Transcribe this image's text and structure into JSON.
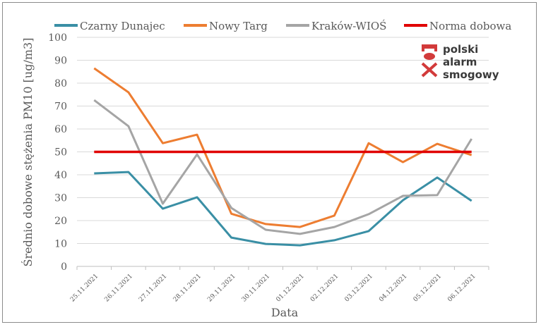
{
  "chart_data": {
    "type": "line",
    "title": "",
    "xlabel": "Data",
    "ylabel": "Średnio dobowe stężenia PM10 [ug/m3]",
    "ylim": [
      0,
      100
    ],
    "yticks": [
      0,
      10,
      20,
      30,
      40,
      50,
      60,
      70,
      80,
      90,
      100
    ],
    "grid": true,
    "legend": "top",
    "categories": [
      "25.11.2021",
      "26.11.2021",
      "27.11.2021",
      "28.11.2021",
      "29.11.2021",
      "30.11.2021",
      "01.12.2021",
      "02.12.2021",
      "03.12.2021",
      "04.12.2021",
      "05.12.2021",
      "06.12.2021"
    ],
    "series": [
      {
        "name": "Czarny Dunajec",
        "color": "#3a8fa5",
        "values": [
          40.6,
          41.2,
          25.2,
          30.2,
          12.6,
          9.8,
          9.2,
          11.4,
          15.4,
          28.9,
          38.8,
          28.6
        ]
      },
      {
        "name": "Nowy Targ",
        "color": "#ed7d31",
        "values": [
          86.5,
          76.0,
          53.8,
          57.5,
          23.0,
          18.5,
          17.2,
          22.2,
          53.8,
          45.5,
          53.5,
          48.6
        ]
      },
      {
        "name": "Kraków-WIOŚ",
        "color": "#a5a5a5",
        "values": [
          72.6,
          61.2,
          27.4,
          48.9,
          25.5,
          16.0,
          14.2,
          17.2,
          22.8,
          30.8,
          31.1,
          55.7
        ]
      },
      {
        "name": "Norma dobowa",
        "color": "#e00000",
        "values": [
          50,
          50,
          50,
          50,
          50,
          50,
          50,
          50,
          50,
          50,
          50,
          50
        ]
      }
    ]
  },
  "logo": {
    "lines": [
      "polski",
      "alarm",
      "smogowy"
    ],
    "color": "#d23a3a"
  }
}
